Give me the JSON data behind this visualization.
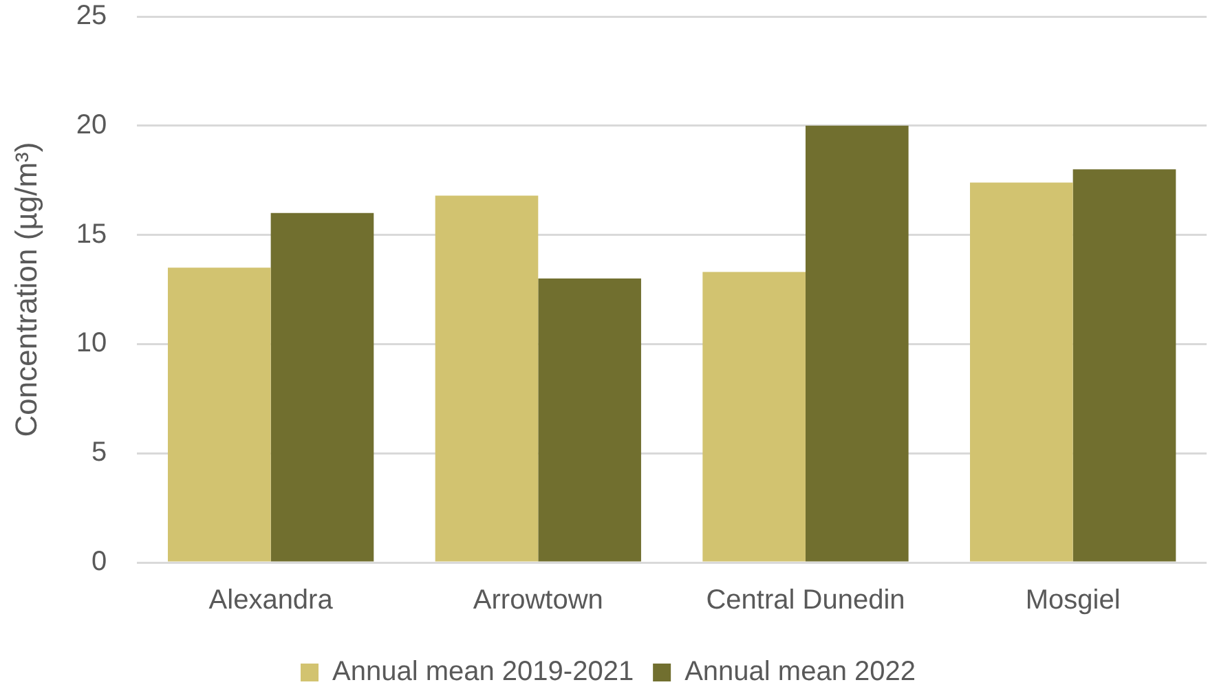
{
  "chart_data": {
    "type": "bar",
    "categories": [
      "Alexandra",
      "Arrowtown",
      "Central Dunedin",
      "Mosgiel"
    ],
    "series": [
      {
        "name": "Annual mean 2019-2021",
        "color": "#d2c370",
        "values": [
          13.5,
          16.8,
          13.3,
          17.4
        ]
      },
      {
        "name": "Annual mean 2022",
        "color": "#716f2f",
        "values": [
          16.0,
          13.0,
          20.0,
          18.0
        ]
      }
    ],
    "ylabel": "Concentration (µg/m³)",
    "ylim": [
      0,
      25
    ],
    "yticks": [
      0,
      5,
      10,
      15,
      20,
      25
    ],
    "grid": "y",
    "legend": "bottom"
  }
}
